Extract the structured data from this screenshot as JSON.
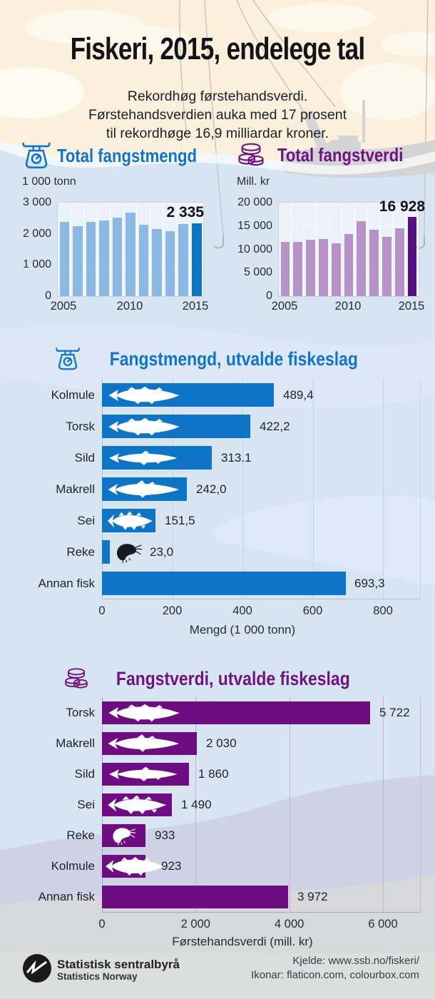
{
  "header": {
    "title": "Fiskeri, 2015, endelege tal",
    "subtitle": [
      "Rekordhøg førstehandsverdi.",
      "Førstehandsverdien auka med 17 prosent",
      "til rekordhøge 16,9 milliardar kroner."
    ]
  },
  "icons": {
    "mengd": "scale-icon",
    "verdi": "coins-icon",
    "logo": "ssb-logo"
  },
  "colors": {
    "accent_blue": "#1173cb",
    "accent_purple": "#70127f",
    "bar_blue_light": "#8cb9e4",
    "bar_blue_dark": "#0e74c8",
    "bar_purple_light": "#b692c6",
    "bar_purple_dark": "#541280",
    "bar_purple_value": "#6e0d81",
    "grid_blue": "#b7d2ed",
    "grid_purple": "#c9abd8"
  },
  "chart_data": [
    {
      "id": "total-fangstmengd",
      "type": "bar",
      "title": "Total fangstmengd",
      "ylabel": "1 000 tonn",
      "x": [
        2005,
        2006,
        2007,
        2008,
        2009,
        2010,
        2011,
        2012,
        2013,
        2014,
        2015
      ],
      "values": [
        2393,
        2249,
        2387,
        2431,
        2524,
        2675,
        2281,
        2150,
        2090,
        2302,
        2335
      ],
      "highlight_index": 10,
      "highlight_label": "2 335",
      "ylim": [
        0,
        3000
      ],
      "yticks": [
        3000,
        2000,
        1000,
        0
      ],
      "ytick_labels": [
        "3 000",
        "2 000",
        "1 000",
        "0"
      ],
      "xtick_labels": [
        "2005",
        "2010",
        "2015"
      ],
      "xtick_cols": [
        0,
        5,
        10
      ],
      "bar_color": "#8cb9e4",
      "highlight_color": "#0e74c8",
      "grid": true,
      "legend": "none"
    },
    {
      "id": "total-fangstverdi",
      "type": "bar",
      "title": "Total fangstverdi",
      "ylabel": "Mill. kr",
      "x": [
        2005,
        2006,
        2007,
        2008,
        2009,
        2010,
        2011,
        2012,
        2013,
        2014,
        2015
      ],
      "values": [
        11650,
        11650,
        12000,
        12150,
        11250,
        13350,
        16000,
        14200,
        12700,
        14450,
        16928
      ],
      "highlight_index": 10,
      "highlight_label": "16 928",
      "ylim": [
        0,
        20000
      ],
      "yticks": [
        20000,
        15000,
        10000,
        5000,
        0
      ],
      "ytick_labels": [
        "20 000",
        "15 000",
        "10 000",
        "5 000",
        "0"
      ],
      "xtick_labels": [
        "2005",
        "2010",
        "2015"
      ],
      "xtick_cols": [
        0,
        5,
        10
      ],
      "bar_color": "#b692c6",
      "highlight_color": "#541280",
      "grid": true,
      "legend": "none"
    },
    {
      "id": "fangstmengd-utvalde-fiskeslag",
      "type": "bar",
      "orientation": "horizontal",
      "title": "Fangstmengd, utvalde fiskeslag",
      "xlabel": "Mengd (1 000 tonn)",
      "categories": [
        "Kolmule",
        "Torsk",
        "Sild",
        "Makrell",
        "Sei",
        "Reke",
        "Annan fisk"
      ],
      "values": [
        489.4,
        422.2,
        313.1,
        242.0,
        151.5,
        23.0,
        693.3
      ],
      "value_labels": [
        "489,4",
        "422,2",
        "313.1",
        "242,0",
        "151,5",
        "23,0",
        "693,3"
      ],
      "icons": [
        {
          "type": "cod",
          "pos": "in"
        },
        {
          "type": "cod",
          "pos": "in"
        },
        {
          "type": "herring",
          "pos": "in"
        },
        {
          "type": "mackerel",
          "pos": "in"
        },
        {
          "type": "saithe",
          "pos": "in"
        },
        {
          "type": "shrimp",
          "pos": "after"
        },
        null
      ],
      "xlim": [
        0,
        800
      ],
      "xtick_labels": [
        "0",
        "200",
        "400",
        "600",
        "800"
      ],
      "bar_color": "#0e74c8",
      "grid": true,
      "legend": "none"
    },
    {
      "id": "fangstverdi-utvalde-fiskeslag",
      "type": "bar",
      "orientation": "horizontal",
      "title": "Fangstverdi, utvalde fiskeslag",
      "xlabel": "Førstehandsverdi (mill. kr)",
      "categories": [
        "Torsk",
        "Makrell",
        "Sild",
        "Sei",
        "Reke",
        "Kolmule",
        "Annan fisk"
      ],
      "values": [
        5722,
        2030,
        1860,
        1490,
        933,
        923,
        3972
      ],
      "value_labels": [
        "5 722",
        "2 030",
        "1 860",
        "1 490",
        "933",
        "923",
        "3 972"
      ],
      "icons": [
        {
          "type": "cod",
          "pos": "in"
        },
        {
          "type": "mackerel",
          "pos": "in"
        },
        {
          "type": "herring",
          "pos": "in"
        },
        {
          "type": "saithe",
          "pos": "in"
        },
        {
          "type": "shrimp",
          "pos": "in"
        },
        {
          "type": "cod",
          "pos": "overflow"
        },
        null
      ],
      "xlim": [
        0,
        6000
      ],
      "xtick_labels": [
        "0",
        "2 000",
        "4 000",
        "6 000"
      ],
      "bar_color": "#6e0d81",
      "grid": true,
      "legend": "none"
    }
  ],
  "footer": {
    "org_name": "Statistisk sentralbyrå",
    "org_name_en": "Statistics Norway",
    "source_line": "Kjelde: www.ssb.no/fiskeri/",
    "icons_line": "Ikonar: flaticon.com, colourbox.com"
  }
}
